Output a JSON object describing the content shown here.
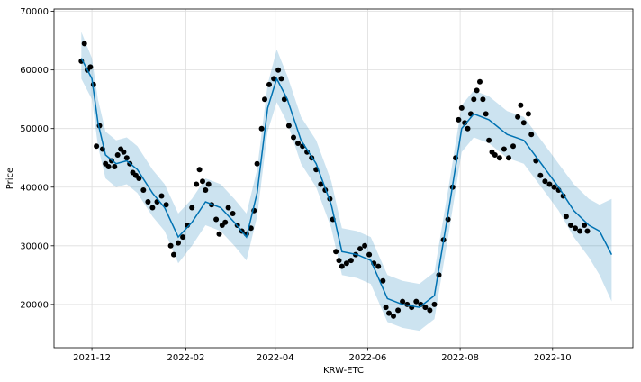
{
  "chart_data": {
    "type": "scatter",
    "title": "",
    "xlabel": "KRW-ETC",
    "ylabel": "Price",
    "xlim": [
      "2021-11-06",
      "2022-11-23"
    ],
    "ylim": [
      12600,
      70400
    ],
    "grid": true,
    "x_ticks": [
      {
        "date": "2021-12-01",
        "label": "2021-12"
      },
      {
        "date": "2022-02-01",
        "label": "2022-02"
      },
      {
        "date": "2022-04-01",
        "label": "2022-04"
      },
      {
        "date": "2022-06-01",
        "label": "2022-06"
      },
      {
        "date": "2022-08-01",
        "label": "2022-08"
      },
      {
        "date": "2022-10-01",
        "label": "2022-10"
      }
    ],
    "y_ticks": [
      {
        "value": 20000,
        "label": "20000"
      },
      {
        "value": 30000,
        "label": "30000"
      },
      {
        "value": 40000,
        "label": "40000"
      },
      {
        "value": 50000,
        "label": "50000"
      },
      {
        "value": 60000,
        "label": "60000"
      },
      {
        "value": 70000,
        "label": "70000"
      }
    ],
    "colors": {
      "observed": "#000000",
      "forecast": "#0072b2",
      "interval": "#0072b2",
      "grid": "#dddddd"
    },
    "series": [
      {
        "kind": "observed",
        "points": [
          [
            "2021-11-24",
            61500
          ],
          [
            "2021-11-26",
            64500
          ],
          [
            "2021-11-28",
            60000
          ],
          [
            "2021-11-30",
            60500
          ],
          [
            "2021-12-02",
            57500
          ],
          [
            "2021-12-04",
            47000
          ],
          [
            "2021-12-06",
            50500
          ],
          [
            "2021-12-08",
            46500
          ],
          [
            "2021-12-10",
            44000
          ],
          [
            "2021-12-12",
            43500
          ],
          [
            "2021-12-14",
            44500
          ],
          [
            "2021-12-16",
            43500
          ],
          [
            "2021-12-18",
            45500
          ],
          [
            "2021-12-20",
            46500
          ],
          [
            "2021-12-22",
            46000
          ],
          [
            "2021-12-24",
            45000
          ],
          [
            "2021-12-26",
            44000
          ],
          [
            "2021-12-28",
            42500
          ],
          [
            "2021-12-30",
            42000
          ],
          [
            "2022-01-01",
            41500
          ],
          [
            "2022-01-04",
            39500
          ],
          [
            "2022-01-07",
            37500
          ],
          [
            "2022-01-10",
            36500
          ],
          [
            "2022-01-13",
            37500
          ],
          [
            "2022-01-16",
            38500
          ],
          [
            "2022-01-19",
            37000
          ],
          [
            "2022-01-22",
            30000
          ],
          [
            "2022-01-24",
            28500
          ],
          [
            "2022-01-27",
            30500
          ],
          [
            "2022-01-30",
            31500
          ],
          [
            "2022-02-02",
            33500
          ],
          [
            "2022-02-05",
            36500
          ],
          [
            "2022-02-08",
            40500
          ],
          [
            "2022-02-10",
            43000
          ],
          [
            "2022-02-12",
            41000
          ],
          [
            "2022-02-14",
            39500
          ],
          [
            "2022-02-16",
            40500
          ],
          [
            "2022-02-18",
            37000
          ],
          [
            "2022-02-21",
            34500
          ],
          [
            "2022-02-23",
            32000
          ],
          [
            "2022-02-25",
            33500
          ],
          [
            "2022-02-27",
            34000
          ],
          [
            "2022-03-01",
            36500
          ],
          [
            "2022-03-04",
            35500
          ],
          [
            "2022-03-07",
            33500
          ],
          [
            "2022-03-10",
            32500
          ],
          [
            "2022-03-13",
            32000
          ],
          [
            "2022-03-16",
            33000
          ],
          [
            "2022-03-18",
            36000
          ],
          [
            "2022-03-20",
            44000
          ],
          [
            "2022-03-23",
            50000
          ],
          [
            "2022-03-25",
            55000
          ],
          [
            "2022-03-28",
            57500
          ],
          [
            "2022-03-31",
            58500
          ],
          [
            "2022-04-03",
            60000
          ],
          [
            "2022-04-05",
            58500
          ],
          [
            "2022-04-07",
            55000
          ],
          [
            "2022-04-10",
            50500
          ],
          [
            "2022-04-13",
            48500
          ],
          [
            "2022-04-16",
            47500
          ],
          [
            "2022-04-19",
            47000
          ],
          [
            "2022-04-22",
            46000
          ],
          [
            "2022-04-25",
            45000
          ],
          [
            "2022-04-28",
            43000
          ],
          [
            "2022-05-01",
            40500
          ],
          [
            "2022-05-04",
            39500
          ],
          [
            "2022-05-07",
            38000
          ],
          [
            "2022-05-09",
            34500
          ],
          [
            "2022-05-11",
            29000
          ],
          [
            "2022-05-13",
            27500
          ],
          [
            "2022-05-15",
            26500
          ],
          [
            "2022-05-18",
            27000
          ],
          [
            "2022-05-21",
            27500
          ],
          [
            "2022-05-24",
            28500
          ],
          [
            "2022-05-27",
            29500
          ],
          [
            "2022-05-30",
            30000
          ],
          [
            "2022-06-02",
            28500
          ],
          [
            "2022-06-05",
            27000
          ],
          [
            "2022-06-08",
            26500
          ],
          [
            "2022-06-11",
            24000
          ],
          [
            "2022-06-13",
            19500
          ],
          [
            "2022-06-15",
            18500
          ],
          [
            "2022-06-18",
            18000
          ],
          [
            "2022-06-21",
            19000
          ],
          [
            "2022-06-24",
            20500
          ],
          [
            "2022-06-27",
            20000
          ],
          [
            "2022-06-30",
            19500
          ],
          [
            "2022-07-03",
            20500
          ],
          [
            "2022-07-06",
            20000
          ],
          [
            "2022-07-09",
            19500
          ],
          [
            "2022-07-12",
            19000
          ],
          [
            "2022-07-15",
            20000
          ],
          [
            "2022-07-18",
            25000
          ],
          [
            "2022-07-21",
            31000
          ],
          [
            "2022-07-24",
            34500
          ],
          [
            "2022-07-27",
            40000
          ],
          [
            "2022-07-29",
            45000
          ],
          [
            "2022-07-31",
            51500
          ],
          [
            "2022-08-02",
            53500
          ],
          [
            "2022-08-04",
            51000
          ],
          [
            "2022-08-06",
            50000
          ],
          [
            "2022-08-08",
            52500
          ],
          [
            "2022-08-10",
            55000
          ],
          [
            "2022-08-12",
            56500
          ],
          [
            "2022-08-14",
            58000
          ],
          [
            "2022-08-16",
            55000
          ],
          [
            "2022-08-18",
            52500
          ],
          [
            "2022-08-20",
            48000
          ],
          [
            "2022-08-22",
            46000
          ],
          [
            "2022-08-24",
            45500
          ],
          [
            "2022-08-27",
            45000
          ],
          [
            "2022-08-30",
            46500
          ],
          [
            "2022-09-02",
            45000
          ],
          [
            "2022-09-05",
            47000
          ],
          [
            "2022-09-08",
            52000
          ],
          [
            "2022-09-10",
            54000
          ],
          [
            "2022-09-12",
            51000
          ],
          [
            "2022-09-15",
            52500
          ],
          [
            "2022-09-17",
            49000
          ],
          [
            "2022-09-20",
            44500
          ],
          [
            "2022-09-23",
            42000
          ],
          [
            "2022-09-26",
            41000
          ],
          [
            "2022-09-29",
            40500
          ],
          [
            "2022-10-02",
            40000
          ],
          [
            "2022-10-05",
            39500
          ],
          [
            "2022-10-08",
            38500
          ],
          [
            "2022-10-10",
            35000
          ],
          [
            "2022-10-13",
            33500
          ],
          [
            "2022-10-16",
            33000
          ],
          [
            "2022-10-19",
            32500
          ],
          [
            "2022-10-22",
            33500
          ],
          [
            "2022-10-24",
            32500
          ]
        ]
      },
      {
        "kind": "forecast",
        "points": [
          [
            "2021-11-24",
            62000
          ],
          [
            "2021-12-01",
            58500
          ],
          [
            "2021-12-05",
            51000
          ],
          [
            "2021-12-10",
            45500
          ],
          [
            "2021-12-17",
            44000
          ],
          [
            "2021-12-24",
            44500
          ],
          [
            "2021-12-31",
            43000
          ],
          [
            "2022-01-10",
            39000
          ],
          [
            "2022-01-18",
            36500
          ],
          [
            "2022-01-27",
            31500
          ],
          [
            "2022-02-05",
            34000
          ],
          [
            "2022-02-14",
            37500
          ],
          [
            "2022-02-24",
            36500
          ],
          [
            "2022-03-05",
            34000
          ],
          [
            "2022-03-13",
            31500
          ],
          [
            "2022-03-20",
            39000
          ],
          [
            "2022-03-27",
            53500
          ],
          [
            "2022-04-02",
            58500
          ],
          [
            "2022-04-09",
            55000
          ],
          [
            "2022-04-18",
            48000
          ],
          [
            "2022-04-28",
            44000
          ],
          [
            "2022-05-08",
            37000
          ],
          [
            "2022-05-15",
            29000
          ],
          [
            "2022-05-25",
            28500
          ],
          [
            "2022-06-03",
            27500
          ],
          [
            "2022-06-14",
            21000
          ],
          [
            "2022-06-24",
            20000
          ],
          [
            "2022-07-05",
            19500
          ],
          [
            "2022-07-15",
            21500
          ],
          [
            "2022-07-25",
            37000
          ],
          [
            "2022-08-02",
            50000
          ],
          [
            "2022-08-10",
            52500
          ],
          [
            "2022-08-20",
            51500
          ],
          [
            "2022-09-01",
            49000
          ],
          [
            "2022-09-12",
            48000
          ],
          [
            "2022-09-25",
            43500
          ],
          [
            "2022-10-05",
            40000
          ],
          [
            "2022-10-15",
            36000
          ],
          [
            "2022-10-25",
            33500
          ],
          [
            "2022-11-01",
            32500
          ],
          [
            "2022-11-09",
            28500
          ]
        ]
      },
      {
        "kind": "interval",
        "band_points": [
          [
            "2021-11-24",
            58500,
            66500
          ],
          [
            "2021-12-01",
            55000,
            62000
          ],
          [
            "2021-12-05",
            47000,
            55000
          ],
          [
            "2021-12-10",
            41500,
            49500
          ],
          [
            "2021-12-17",
            40000,
            48000
          ],
          [
            "2021-12-24",
            40500,
            48500
          ],
          [
            "2021-12-31",
            39000,
            47000
          ],
          [
            "2022-01-10",
            35000,
            43000
          ],
          [
            "2022-01-18",
            32500,
            40500
          ],
          [
            "2022-01-27",
            27000,
            35500
          ],
          [
            "2022-02-05",
            30000,
            38000
          ],
          [
            "2022-02-14",
            33500,
            41500
          ],
          [
            "2022-02-24",
            32500,
            40500
          ],
          [
            "2022-03-05",
            30000,
            38000
          ],
          [
            "2022-03-13",
            27500,
            35500
          ],
          [
            "2022-03-20",
            35000,
            43000
          ],
          [
            "2022-03-27",
            49500,
            57500
          ],
          [
            "2022-04-02",
            54500,
            63500
          ],
          [
            "2022-04-09",
            51000,
            59000
          ],
          [
            "2022-04-18",
            44000,
            52000
          ],
          [
            "2022-04-28",
            40000,
            48000
          ],
          [
            "2022-05-08",
            33000,
            41000
          ],
          [
            "2022-05-15",
            25000,
            33000
          ],
          [
            "2022-05-25",
            24500,
            32500
          ],
          [
            "2022-06-03",
            23500,
            31500
          ],
          [
            "2022-06-14",
            17000,
            25000
          ],
          [
            "2022-06-24",
            16000,
            24000
          ],
          [
            "2022-07-05",
            15500,
            23500
          ],
          [
            "2022-07-15",
            17500,
            25500
          ],
          [
            "2022-07-25",
            33000,
            41000
          ],
          [
            "2022-08-02",
            46000,
            54000
          ],
          [
            "2022-08-10",
            48500,
            56500
          ],
          [
            "2022-08-20",
            47500,
            55500
          ],
          [
            "2022-09-01",
            45000,
            53000
          ],
          [
            "2022-09-12",
            44000,
            52000
          ],
          [
            "2022-09-25",
            39500,
            47500
          ],
          [
            "2022-10-05",
            36000,
            44000
          ],
          [
            "2022-10-15",
            31500,
            40500
          ],
          [
            "2022-10-25",
            28000,
            38000
          ],
          [
            "2022-11-01",
            25000,
            37000
          ],
          [
            "2022-11-09",
            20500,
            38000
          ]
        ]
      }
    ]
  }
}
